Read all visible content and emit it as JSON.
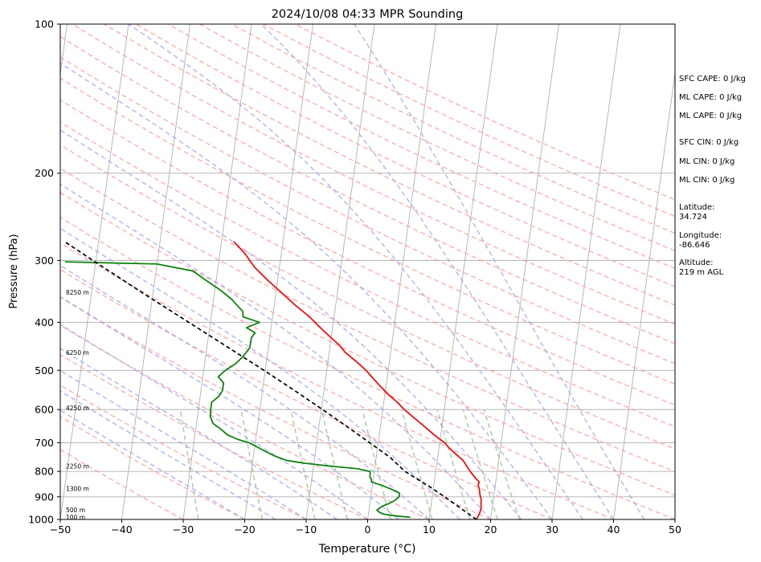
{
  "chart_data": {
    "type": "line",
    "title": "2024/10/08 04:33 MPR Sounding",
    "xlabel": "Temperature (°C)",
    "ylabel": "Pressure (hPa)",
    "xlim": [
      -50,
      50
    ],
    "ylim": [
      1000,
      100
    ],
    "y_scale": "log",
    "skew": "skew-T",
    "grid": true,
    "x_ticks": [
      -50,
      -40,
      -30,
      -20,
      -10,
      0,
      10,
      20,
      30,
      40,
      50
    ],
    "x_tick_labels": [
      "−50",
      "−40",
      "−30",
      "−20",
      "−10",
      "0",
      "10",
      "20",
      "30",
      "40",
      "50"
    ],
    "y_ticks": [
      1000,
      900,
      800,
      700,
      600,
      500,
      400,
      300,
      200,
      100
    ],
    "y_tick_labels": [
      "1000",
      "900",
      "800",
      "700",
      "600",
      "500",
      "400",
      "300",
      "200",
      "100"
    ],
    "height_labels": [
      {
        "pressure": 988,
        "label": "100 m"
      },
      {
        "pressure": 956,
        "label": "500 m"
      },
      {
        "pressure": 866,
        "label": "1300 m"
      },
      {
        "pressure": 780,
        "label": "2250 m"
      },
      {
        "pressure": 595,
        "label": "4250 m"
      },
      {
        "pressure": 460,
        "label": "6250 m"
      },
      {
        "pressure": 348,
        "label": "8250 m"
      }
    ],
    "series": [
      {
        "role": "temperature",
        "color": "#ff0000",
        "points": [
          [
            1000,
            17.7
          ],
          [
            985,
            17.9
          ],
          [
            970,
            18.1
          ],
          [
            950,
            18.2
          ],
          [
            930,
            18.1
          ],
          [
            910,
            18.0
          ],
          [
            890,
            17.7
          ],
          [
            870,
            17.5
          ],
          [
            850,
            17.2
          ],
          [
            840,
            17.3
          ],
          [
            820,
            16.4
          ],
          [
            800,
            15.6
          ],
          [
            780,
            14.9
          ],
          [
            760,
            14.2
          ],
          [
            740,
            13.0
          ],
          [
            720,
            11.8
          ],
          [
            700,
            10.8
          ],
          [
            680,
            9.3
          ],
          [
            660,
            7.9
          ],
          [
            640,
            6.5
          ],
          [
            620,
            5.0
          ],
          [
            600,
            3.5
          ],
          [
            580,
            2.2
          ],
          [
            560,
            0.6
          ],
          [
            540,
            -0.8
          ],
          [
            520,
            -2.2
          ],
          [
            500,
            -3.6
          ],
          [
            480,
            -5.4
          ],
          [
            460,
            -7.4
          ],
          [
            445,
            -8.5
          ],
          [
            430,
            -10.0
          ],
          [
            410,
            -12.0
          ],
          [
            390,
            -14.0
          ],
          [
            370,
            -16.5
          ],
          [
            350,
            -18.9
          ],
          [
            330,
            -21.5
          ],
          [
            310,
            -24.0
          ],
          [
            290,
            -26.0
          ],
          [
            275,
            -28.0
          ]
        ]
      },
      {
        "role": "dewpoint",
        "color": "#008000",
        "points": [
          [
            990,
            6.9
          ],
          [
            985,
            5.0
          ],
          [
            980,
            3.5
          ],
          [
            975,
            2.4
          ],
          [
            968,
            1.8
          ],
          [
            958,
            1.3
          ],
          [
            950,
            1.6
          ],
          [
            940,
            2.1
          ],
          [
            930,
            3.0
          ],
          [
            915,
            4.0
          ],
          [
            900,
            4.6
          ],
          [
            885,
            4.6
          ],
          [
            870,
            3.3
          ],
          [
            855,
            1.7
          ],
          [
            840,
            -0.2
          ],
          [
            830,
            -0.3
          ],
          [
            820,
            -0.6
          ],
          [
            810,
            -0.6
          ],
          [
            800,
            -0.7
          ],
          [
            790,
            -2.8
          ],
          [
            780,
            -7.5
          ],
          [
            770,
            -11.5
          ],
          [
            760,
            -14.5
          ],
          [
            745,
            -16.5
          ],
          [
            730,
            -18.0
          ],
          [
            715,
            -19.5
          ],
          [
            700,
            -21.0
          ],
          [
            690,
            -22.8
          ],
          [
            675,
            -24.7
          ],
          [
            660,
            -25.7
          ],
          [
            640,
            -27.3
          ],
          [
            620,
            -27.9
          ],
          [
            600,
            -28.0
          ],
          [
            580,
            -28.0
          ],
          [
            565,
            -27.0
          ],
          [
            550,
            -26.5
          ],
          [
            530,
            -26.5
          ],
          [
            515,
            -27.5
          ],
          [
            500,
            -26.5
          ],
          [
            485,
            -25.0
          ],
          [
            470,
            -24.0
          ],
          [
            450,
            -23.0
          ],
          [
            430,
            -23.0
          ],
          [
            420,
            -22.5
          ],
          [
            410,
            -24.0
          ],
          [
            400,
            -22.0
          ],
          [
            390,
            -24.8
          ],
          [
            380,
            -25.0
          ],
          [
            370,
            -26.0
          ],
          [
            360,
            -27.0
          ],
          [
            345,
            -29.0
          ],
          [
            330,
            -31.5
          ],
          [
            315,
            -34.0
          ],
          [
            305,
            -40.0
          ],
          [
            302,
            -55.0
          ]
        ]
      },
      {
        "role": "parcel",
        "color": "#000000",
        "dashed": true,
        "points": [
          [
            1000,
            17.7
          ],
          [
            960,
            15.5
          ],
          [
            930,
            13.8
          ],
          [
            900,
            12.0
          ],
          [
            875,
            10.4
          ],
          [
            855,
            9.1
          ],
          [
            840,
            8.0
          ],
          [
            820,
            6.5
          ],
          [
            800,
            5.0
          ],
          [
            750,
            2.3
          ],
          [
            700,
            -1.4
          ],
          [
            650,
            -5.4
          ],
          [
            600,
            -9.8
          ],
          [
            550,
            -14.7
          ],
          [
            500,
            -20.2
          ],
          [
            450,
            -26.5
          ],
          [
            400,
            -33.5
          ],
          [
            350,
            -41.5
          ],
          [
            300,
            -50.5
          ],
          [
            275,
            -55.5
          ]
        ]
      }
    ],
    "reference_lines": {
      "isotherms_every_degC": 10,
      "dry_adiabats_theta_K": [
        -30,
        -20,
        -10,
        0,
        10,
        20,
        30,
        40,
        50,
        60,
        70,
        80,
        90,
        100,
        110,
        120,
        130,
        140,
        150,
        160,
        170,
        180,
        190,
        200,
        210
      ],
      "moist_adiabats_T0_degC": [
        -20,
        -15,
        -10,
        -5,
        0,
        5,
        10,
        15,
        20,
        25,
        30,
        35,
        40,
        45
      ],
      "mixing_ratio_lines_g_per_kg": [
        0.4,
        1,
        2,
        3,
        5,
        8,
        12,
        16,
        20
      ]
    },
    "colors": {
      "isotherm": "#b0b0b0",
      "isobar": "#b0b0b0",
      "dry_adiabat": "#ff9a9a",
      "moist_adiabat": "#9f9ff2",
      "mixing_ratio": "#8cc08c"
    }
  },
  "side_info": {
    "sfc_cape": "SFC CAPE: 0 J/kg",
    "ml_cape_1": "ML CAPE: 0 J/kg",
    "ml_cape_2": "ML CAPE: 0 J/kg",
    "sfc_cin": "SFC CIN: 0 J/kg",
    "ml_cin_1": "ML CIN: 0 J/kg",
    "ml_cin_2": "ML CIN: 0 J/kg",
    "latitude_label": "Latitude:",
    "latitude_value": "34.724",
    "longitude_label": "Longitude:",
    "longitude_value": "-86.646",
    "altitude_label": "Altitude:",
    "altitude_value": "219 m AGL"
  }
}
